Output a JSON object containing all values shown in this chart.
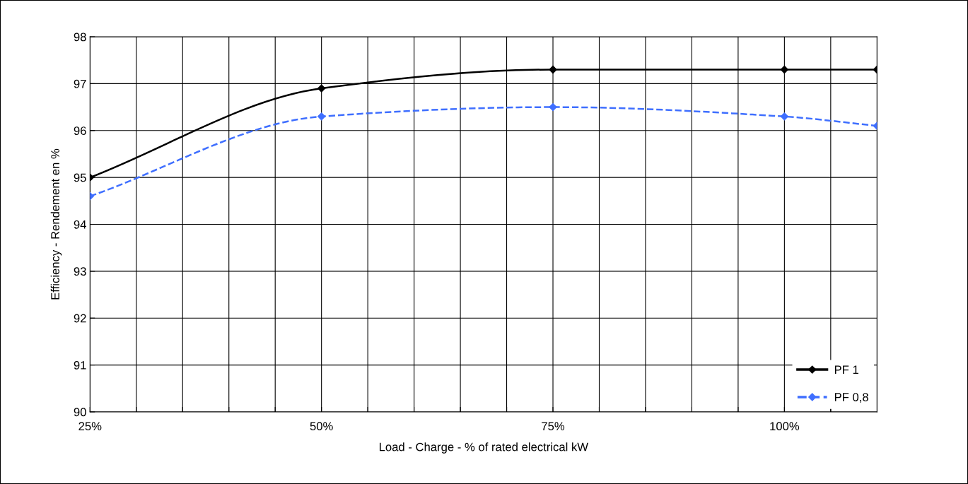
{
  "chart_data": {
    "type": "line",
    "xlabel": "Load - Charge - % of rated electrical kW",
    "ylabel": "Efficiency - Rendement en %",
    "x": [
      25,
      50,
      75,
      100,
      110
    ],
    "series": [
      {
        "name": "PF 1",
        "color": "#000000",
        "line_style": "solid",
        "values": [
          95.0,
          96.9,
          97.3,
          97.3,
          97.3
        ]
      },
      {
        "name": "PF 0,8",
        "color": "#3f6fff",
        "line_style": "dashed",
        "values": [
          94.6,
          96.3,
          96.5,
          96.3,
          96.1
        ]
      }
    ],
    "xlim": [
      25,
      110
    ],
    "xticks": [
      {
        "value": 25,
        "label": "25%"
      },
      {
        "value": 30,
        "label": null
      },
      {
        "value": 35,
        "label": null
      },
      {
        "value": 40,
        "label": null
      },
      {
        "value": 45,
        "label": null
      },
      {
        "value": 50,
        "label": "50%"
      },
      {
        "value": 55,
        "label": null
      },
      {
        "value": 60,
        "label": null
      },
      {
        "value": 65,
        "label": null
      },
      {
        "value": 70,
        "label": null
      },
      {
        "value": 75,
        "label": "75%"
      },
      {
        "value": 80,
        "label": null
      },
      {
        "value": 85,
        "label": null
      },
      {
        "value": 90,
        "label": null
      },
      {
        "value": 95,
        "label": null
      },
      {
        "value": 100,
        "label": "100%"
      },
      {
        "value": 105,
        "label": null
      }
    ],
    "ylim": [
      90,
      98
    ],
    "yticks": [
      90,
      91,
      92,
      93,
      94,
      95,
      96,
      97,
      98
    ],
    "grid": true,
    "legend": "bottom right",
    "marker": "diamond"
  }
}
